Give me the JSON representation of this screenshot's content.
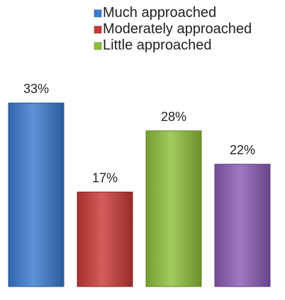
{
  "chart_data": {
    "type": "bar",
    "categories": [
      "",
      "",
      "",
      ""
    ],
    "series": [
      {
        "name": "Much approached",
        "value": 33,
        "color": "#3b7bd0"
      },
      {
        "name": "Moderately approached",
        "value": 17,
        "color": "#c93a37"
      },
      {
        "name": "Little approached",
        "value": 28,
        "color": "#8fbf3a"
      },
      {
        "name": "",
        "value": 22,
        "color": "#8a5bb5"
      }
    ],
    "data_labels": [
      "33%",
      "17%",
      "28%",
      "22%"
    ],
    "value_unit": "%",
    "ylim": [
      0,
      36
    ],
    "legend_position": "top-right",
    "grid": false,
    "title": "",
    "xlabel": "",
    "ylabel": ""
  }
}
